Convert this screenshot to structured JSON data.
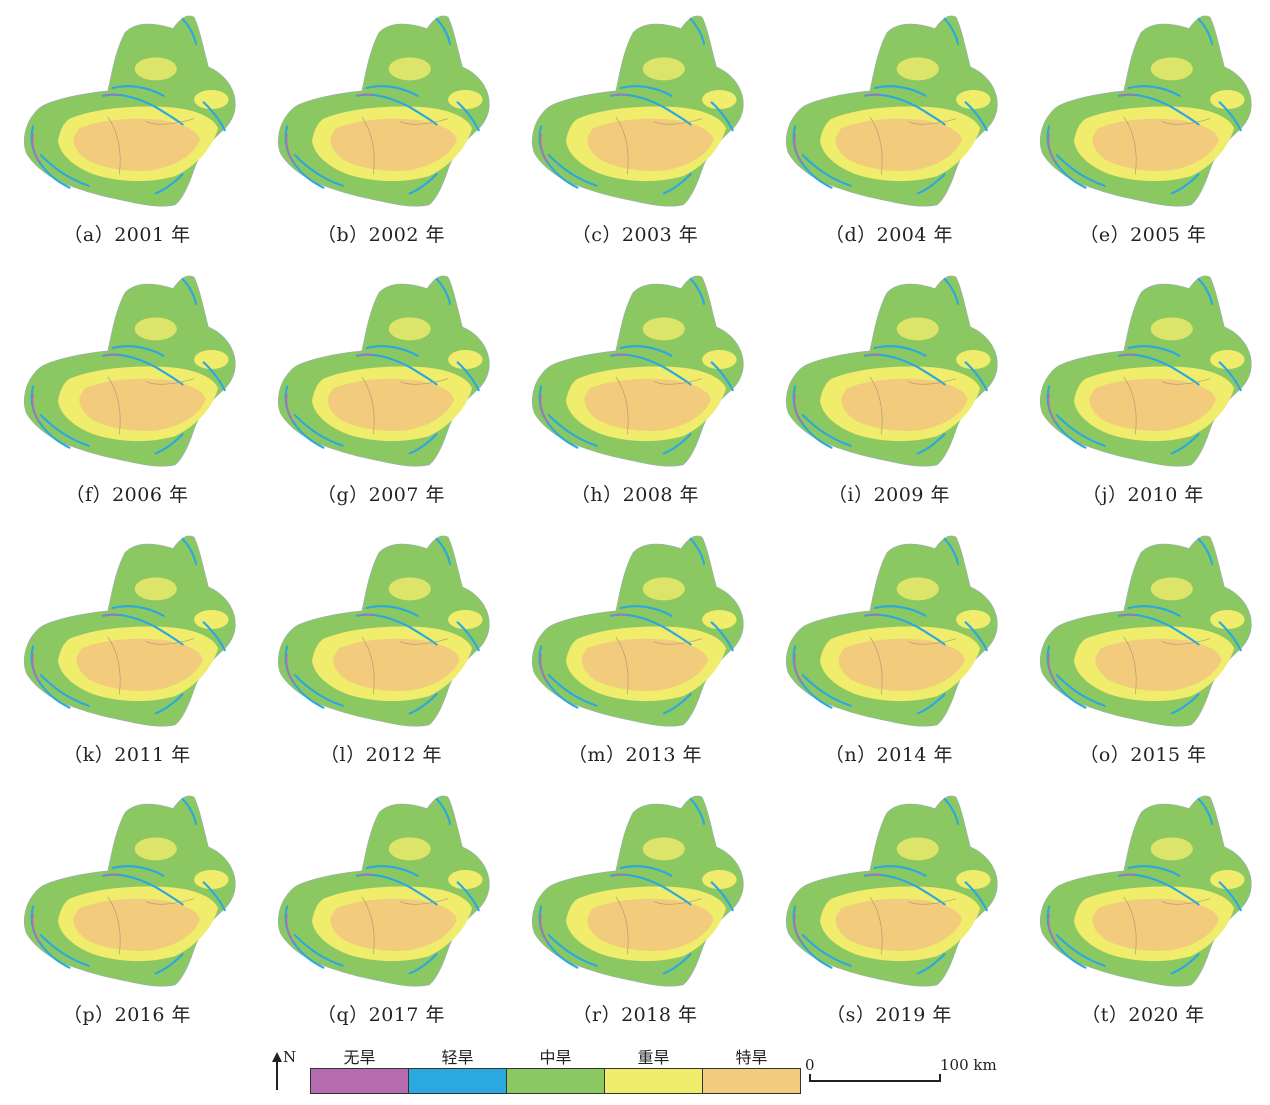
{
  "panels": [
    {
      "caption": "（a）2001 年"
    },
    {
      "caption": "（b）2002 年"
    },
    {
      "caption": "（c）2003 年"
    },
    {
      "caption": "（d）2004 年"
    },
    {
      "caption": "（e）2005 年"
    },
    {
      "caption": "（f）2006 年"
    },
    {
      "caption": "（g）2007 年"
    },
    {
      "caption": "（h）2008 年"
    },
    {
      "caption": "（i）2009 年"
    },
    {
      "caption": "（j）2010 年"
    },
    {
      "caption": "（k）2011 年"
    },
    {
      "caption": "（l）2012 年"
    },
    {
      "caption": "（m）2013 年"
    },
    {
      "caption": "（n）2014 年"
    },
    {
      "caption": "（o）2015 年"
    },
    {
      "caption": "（p）2016 年"
    },
    {
      "caption": "（q）2017 年"
    },
    {
      "caption": "（r）2018 年"
    },
    {
      "caption": "（s）2019 年"
    },
    {
      "caption": "（t）2020 年"
    }
  ],
  "legend": {
    "north": "N",
    "classes": [
      {
        "label": "无旱",
        "color": "#b86cb0"
      },
      {
        "label": "轻旱",
        "color": "#2aa8e0"
      },
      {
        "label": "中旱",
        "color": "#8cc862"
      },
      {
        "label": "重旱",
        "color": "#f0ec6c"
      },
      {
        "label": "特旱",
        "color": "#f2cc7c"
      }
    ],
    "scale_start": "0",
    "scale_end": "100 km"
  }
}
